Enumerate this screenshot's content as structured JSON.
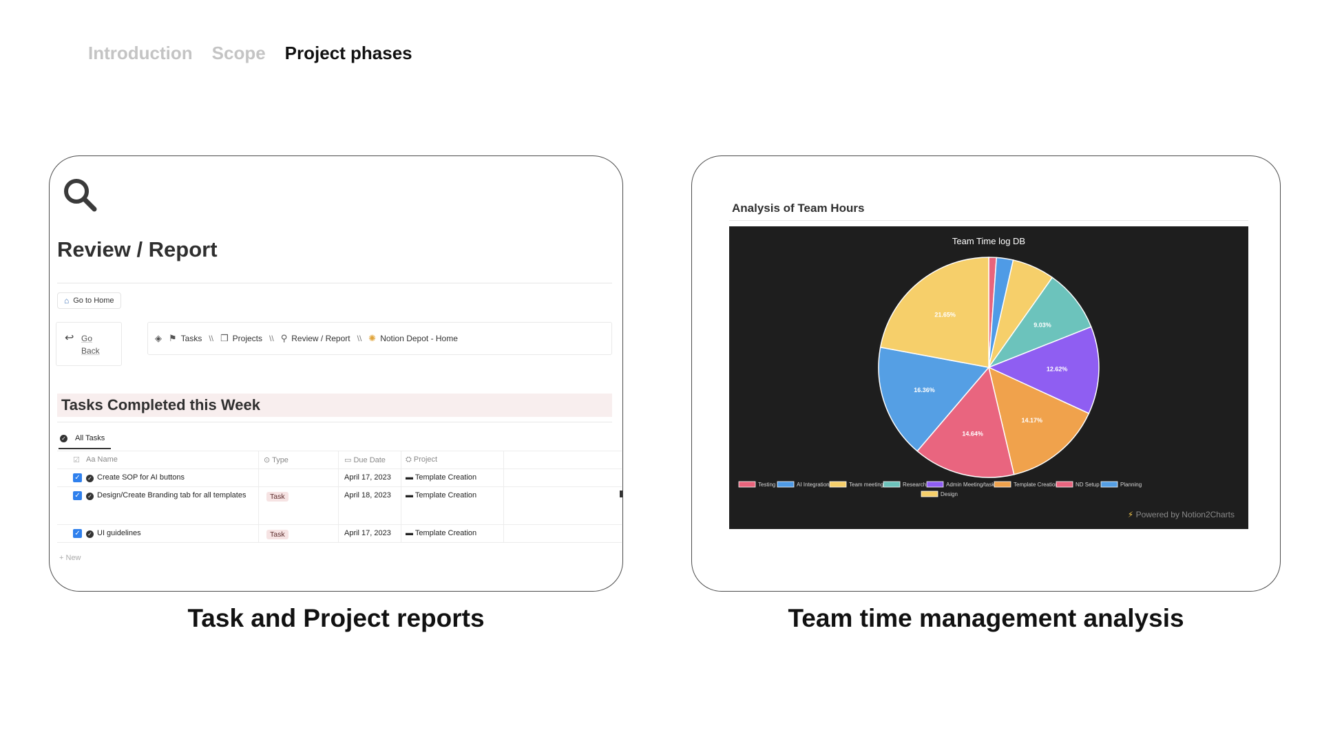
{
  "topnav": {
    "tabs": [
      {
        "label": "Introduction",
        "active": false
      },
      {
        "label": "Scope",
        "active": false
      },
      {
        "label": "Project phases",
        "active": true
      }
    ]
  },
  "left_card": {
    "icon": "magnifier-icon",
    "title": "Review / Report",
    "home_button": "Go to Home",
    "go_back": {
      "line1": "Go",
      "line2": "Back"
    },
    "breadcrumbs": [
      "Tasks",
      "Projects",
      "Review / Report",
      "Notion Depot - Home"
    ],
    "separator": "\\\\",
    "section_title": "Tasks Completed this Week",
    "view_tab": "All Tasks",
    "columns": [
      "Name",
      "Type",
      "Due Date",
      "Project"
    ],
    "rows": [
      {
        "name": "Create SOP for AI buttons",
        "type": "",
        "due": "April 17, 2023",
        "project": "Template Creation"
      },
      {
        "name": "Design/Create Branding tab for all templates",
        "type": "Task",
        "due": "April 18, 2023",
        "project": "Template Creation"
      },
      {
        "name": "UI guidelines",
        "type": "Task",
        "due": "April 17, 2023",
        "project": "Template Creation"
      }
    ],
    "new_label": "New",
    "caption": "Task and Project reports"
  },
  "right_card": {
    "title": "Analysis of Team Hours",
    "powered_by": "Powered by Notion2Charts",
    "caption": "Team time management analysis"
  },
  "chart_data": {
    "type": "pie",
    "title": "Team Time log DB",
    "legend_position": "bottom",
    "slices": [
      {
        "name": "Testing",
        "value": 1.1,
        "color": "#e8647c",
        "label": ""
      },
      {
        "name": "AI Integration",
        "value": 2.4,
        "color": "#4f9be6",
        "label": ""
      },
      {
        "name": "Team meeting",
        "value": 6.1,
        "color": "#f6cf6a",
        "label": ""
      },
      {
        "name": "Research",
        "value": 9.03,
        "color": "#6cc3bc",
        "label": "9.03%"
      },
      {
        "name": "Admin Meeting/task",
        "value": 12.62,
        "color": "#8f5ef2",
        "label": "12.62%"
      },
      {
        "name": "Template Creation",
        "value": 14.17,
        "color": "#f0a24c",
        "label": "14.17%"
      },
      {
        "name": "ND Setup",
        "value": 14.64,
        "color": "#e9657f",
        "label": "14.64%"
      },
      {
        "name": "Planning",
        "value": 16.36,
        "color": "#559fe4",
        "label": "16.36%"
      },
      {
        "name": "Design",
        "value": 21.65,
        "color": "#f6cf6a",
        "label": "21.65%"
      }
    ]
  }
}
